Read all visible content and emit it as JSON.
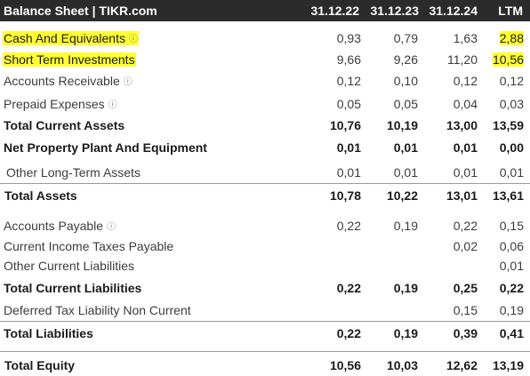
{
  "header": {
    "title": "Balance Sheet | TIKR.com",
    "columns": [
      "31.12.22",
      "31.12.23",
      "31.12.24",
      "LTM"
    ]
  },
  "info_icon": "info-circle-icon",
  "highlight_color": "#ffff33",
  "rows": [
    {
      "label": "Cash And Equivalents",
      "values": [
        "0,93",
        "0,79",
        "1,63",
        "2,88"
      ]
    },
    {
      "label": "Short Term Investments",
      "values": [
        "9,66",
        "9,26",
        "11,20",
        "10,56"
      ]
    },
    {
      "label": "Accounts Receivable",
      "values": [
        "0,12",
        "0,10",
        "0,12",
        "0,12"
      ]
    },
    {
      "label": "Prepaid Expenses",
      "values": [
        "0,05",
        "0,05",
        "0,04",
        "0,03"
      ]
    },
    {
      "label": "Total Current Assets",
      "values": [
        "10,76",
        "10,19",
        "13,00",
        "13,59"
      ]
    },
    {
      "label": "Net Property Plant And Equipment",
      "values": [
        "0,01",
        "0,01",
        "0,01",
        "0,00"
      ]
    },
    {
      "label": "Other Long-Term Assets",
      "values": [
        "0,01",
        "0,01",
        "0,01",
        "0,01"
      ]
    },
    {
      "label": "Total Assets",
      "values": [
        "10,78",
        "10,22",
        "13,01",
        "13,61"
      ]
    },
    {
      "label": "Accounts Payable",
      "values": [
        "0,22",
        "0,19",
        "0,22",
        "0,15"
      ]
    },
    {
      "label": "Current Income Taxes Payable",
      "values": [
        "",
        "",
        "0,02",
        "0,06"
      ]
    },
    {
      "label": "Other Current Liabilities",
      "values": [
        "",
        "",
        "",
        "0,01"
      ]
    },
    {
      "label": "Total Current Liabilities",
      "values": [
        "0,22",
        "0,19",
        "0,25",
        "0,22"
      ]
    },
    {
      "label": "Deferred Tax Liability Non Current",
      "values": [
        "",
        "",
        "0,15",
        "0,19"
      ]
    },
    {
      "label": "Total Liabilities",
      "values": [
        "0,22",
        "0,19",
        "0,39",
        "0,41"
      ]
    },
    {
      "label": "Total Equity",
      "values": [
        "10,56",
        "10,03",
        "12,62",
        "13,19"
      ]
    }
  ]
}
